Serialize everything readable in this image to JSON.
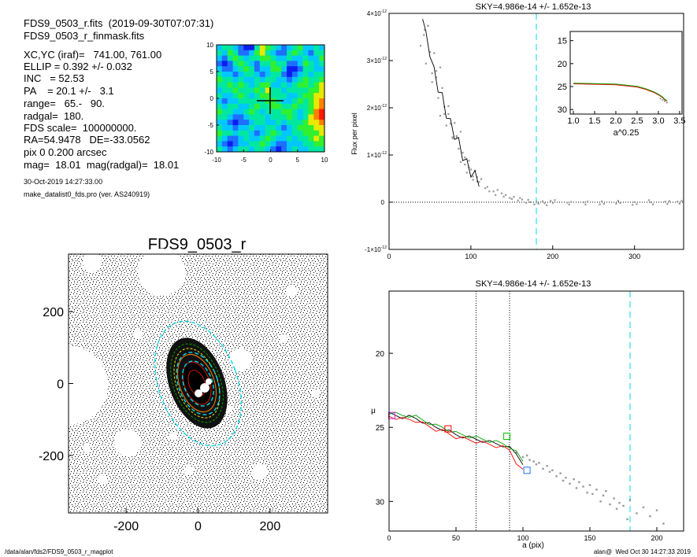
{
  "header": {
    "line1": "FDS9_0503_r.fits  (2019-09-30T07:07:31)",
    "line2": "FDS9_0503_r_finmask.fits",
    "params": [
      "XC,YC (iraf)=   741.00, 761.00",
      "ELLIP = 0.392 +/- 0.032",
      "INC   = 52.53",
      "PA    = 20.1 +/-   3.1",
      "range=   65.-   90.",
      "radgal=  180.",
      "FDS scale=  100000000.",
      "RA=54.9478   DE=-33.0562",
      "pix 0 0.200 arcsec",
      "mag=  18.01  mag(radgal)=  18.01"
    ],
    "date": "30-Oct-2019 14:27:33.00",
    "program": "make_datalist0_fds.pro (ver. AS240919)"
  },
  "footer": {
    "left": "/data/alan/fds2/FDS9_0503_r_magplot",
    "right": "alan@  Wed Oct 30 14:27:33 2019"
  },
  "colors": {
    "cyan": "#00d8e8",
    "model_black": "#000000",
    "model_red": "#ff0000",
    "model_green": "#00a000",
    "points": "#999999",
    "contour": [
      "#0a1ef0",
      "#1e6eff",
      "#00c8ff",
      "#00e8a0",
      "#30f030",
      "#e8e800",
      "#ff8000",
      "#ff1a00"
    ]
  },
  "chart_data": [
    {
      "id": "residual",
      "type": "heatmap",
      "title": "",
      "xlim": [
        -10,
        10
      ],
      "ylim": [
        -10,
        10
      ],
      "xticks": [
        "-10",
        "-5",
        "0",
        "5",
        "10"
      ],
      "yticks": [
        "10",
        "5",
        "0",
        "-5",
        "-10"
      ],
      "grid": [
        [
          2,
          3,
          3,
          2,
          1,
          0,
          0,
          3,
          5,
          4,
          3,
          2,
          1,
          2,
          3,
          4,
          2,
          2,
          3,
          2
        ],
        [
          3,
          2,
          4,
          3,
          1,
          1,
          2,
          4,
          5,
          3,
          2,
          1,
          1,
          3,
          4,
          3,
          2,
          1,
          3,
          3
        ],
        [
          2,
          1,
          3,
          4,
          3,
          2,
          3,
          3,
          4,
          4,
          3,
          2,
          2,
          3,
          2,
          2,
          3,
          2,
          2,
          4
        ],
        [
          1,
          0,
          1,
          3,
          4,
          3,
          2,
          1,
          3,
          3,
          4,
          3,
          3,
          1,
          1,
          2,
          4,
          3,
          2,
          3
        ],
        [
          2,
          1,
          1,
          2,
          3,
          4,
          3,
          1,
          2,
          2,
          4,
          4,
          2,
          0,
          0,
          1,
          3,
          3,
          2,
          2
        ],
        [
          3,
          2,
          2,
          1,
          2,
          3,
          3,
          2,
          1,
          2,
          3,
          3,
          1,
          0,
          1,
          2,
          3,
          2,
          3,
          3
        ],
        [
          4,
          3,
          3,
          2,
          3,
          2,
          2,
          3,
          2,
          3,
          3,
          2,
          2,
          1,
          2,
          3,
          4,
          3,
          3,
          4
        ],
        [
          3,
          3,
          4,
          3,
          4,
          3,
          2,
          3,
          4,
          4,
          2,
          2,
          3,
          2,
          3,
          4,
          4,
          3,
          4,
          5
        ],
        [
          2,
          3,
          3,
          4,
          3,
          3,
          3,
          4,
          3,
          5,
          3,
          3,
          2,
          3,
          3,
          3,
          3,
          4,
          4,
          5
        ],
        [
          3,
          2,
          2,
          3,
          4,
          3,
          2,
          3,
          4,
          4,
          3,
          3,
          3,
          2,
          2,
          3,
          4,
          4,
          5,
          5
        ],
        [
          2,
          1,
          2,
          2,
          3,
          3,
          3,
          3,
          3,
          4,
          4,
          3,
          2,
          2,
          3,
          4,
          3,
          4,
          5,
          6
        ],
        [
          3,
          2,
          3,
          3,
          2,
          2,
          3,
          4,
          3,
          3,
          4,
          4,
          3,
          3,
          4,
          3,
          3,
          4,
          5,
          6
        ],
        [
          4,
          3,
          3,
          2,
          2,
          3,
          4,
          3,
          2,
          3,
          3,
          3,
          4,
          4,
          3,
          2,
          3,
          4,
          6,
          7
        ],
        [
          3,
          3,
          2,
          1,
          1,
          2,
          3,
          3,
          3,
          2,
          3,
          3,
          3,
          4,
          3,
          2,
          3,
          5,
          6,
          7
        ],
        [
          2,
          2,
          1,
          0,
          1,
          1,
          2,
          3,
          3,
          2,
          2,
          3,
          2,
          3,
          3,
          3,
          4,
          5,
          5,
          6
        ],
        [
          3,
          2,
          2,
          1,
          2,
          2,
          3,
          2,
          2,
          3,
          3,
          2,
          1,
          2,
          3,
          4,
          4,
          4,
          5,
          5
        ],
        [
          4,
          3,
          3,
          2,
          3,
          3,
          2,
          1,
          2,
          3,
          4,
          3,
          2,
          2,
          3,
          3,
          4,
          4,
          4,
          5
        ],
        [
          3,
          2,
          1,
          1,
          2,
          3,
          2,
          2,
          3,
          4,
          3,
          2,
          2,
          3,
          2,
          3,
          3,
          4,
          5,
          4
        ],
        [
          2,
          1,
          0,
          1,
          2,
          2,
          3,
          3,
          4,
          3,
          2,
          1,
          1,
          2,
          2,
          2,
          3,
          3,
          4,
          4
        ],
        [
          3,
          2,
          1,
          2,
          3,
          3,
          2,
          3,
          3,
          2,
          1,
          0,
          1,
          2,
          3,
          2,
          2,
          3,
          3,
          3
        ]
      ]
    },
    {
      "id": "image",
      "type": "scatter",
      "title": "FDS9_0503_r",
      "xlim": [
        -360,
        360
      ],
      "ylim": [
        -360,
        360
      ],
      "xticks": [
        -200,
        0,
        200
      ],
      "yticks": [
        200,
        0,
        -200
      ],
      "ellipses": [
        {
          "a": 180,
          "ellip": 0.392,
          "pa": 20.1
        },
        {
          "a": 90,
          "ellip": 0.392,
          "pa": 20.1
        },
        {
          "a": 65,
          "ellip": 0.392,
          "pa": 20.1
        }
      ]
    },
    {
      "id": "flux",
      "type": "scatter",
      "title": "SKY=4.986e-14 +/- 1.652e-13",
      "xlabel": "",
      "ylabel": "Flux per pixel",
      "xlim": [
        0,
        360
      ],
      "ylim": [
        -1e-12,
        4e-12
      ],
      "xticks": [
        0,
        100,
        200,
        300
      ],
      "yticks": [
        {
          "v": 4e-12,
          "m": "4",
          "e": "-12"
        },
        {
          "v": 3e-12,
          "m": "3",
          "e": "-12"
        },
        {
          "v": 2e-12,
          "m": "2",
          "e": "-12"
        },
        {
          "v": 1e-12,
          "m": "1",
          "e": "-12"
        },
        {
          "v": 0,
          "m": "0",
          "e": ""
        },
        {
          "v": -1e-12,
          "m": "-1",
          "e": "-12"
        }
      ],
      "radgal": 180,
      "profile": {
        "x": [
          41,
          45,
          50,
          55,
          60,
          65,
          70,
          75,
          80,
          85,
          90,
          95,
          100,
          105,
          110,
          120,
          130,
          140,
          150,
          160,
          170,
          180,
          190,
          200,
          220,
          240,
          260,
          280,
          300,
          320,
          340,
          355
        ],
        "y": [
          4e-12,
          3.5e-12,
          3.2e-12,
          2.75e-12,
          2.45e-12,
          2.2e-12,
          1.9e-12,
          1.65e-12,
          1.45e-12,
          1.25e-12,
          1e-12,
          8e-13,
          6.5e-13,
          5.5e-13,
          4.5e-13,
          3e-13,
          2e-13,
          1.5e-13,
          1e-13,
          5e-14,
          2e-14,
          0.0,
          -2e-14,
          0.0,
          -2e-14,
          0.0,
          -3e-14,
          0.0,
          -1e-14,
          0.0,
          -2e-14,
          0.0
        ]
      },
      "inset": {
        "xlabel": "a^0.25",
        "xlim": [
          1.0,
          3.5
        ],
        "ylim": [
          31,
          13
        ],
        "xticks": [
          "1.0",
          "1.5",
          "2.0",
          "2.5",
          "3.0",
          "3.5"
        ],
        "yticks": [
          "15",
          "20",
          "25",
          "30"
        ],
        "curve": {
          "x": [
            1.0,
            1.5,
            2.0,
            2.5,
            2.7,
            2.9,
            3.0,
            3.1,
            3.15,
            3.2
          ],
          "y": [
            24.4,
            24.5,
            24.6,
            25.1,
            25.6,
            26.3,
            26.8,
            27.4,
            27.9,
            28.2
          ]
        }
      }
    },
    {
      "id": "mu",
      "type": "line",
      "title": "SKY=4.986e-14 +/- 1.652e-13",
      "xlabel": "a (pix)",
      "ylabel": "μ",
      "xlim": [
        0,
        220
      ],
      "ylim": [
        32,
        15.8
      ],
      "xticks": [
        0,
        50,
        100,
        150,
        200
      ],
      "yticks": [
        20,
        25,
        30
      ],
      "range_lines": [
        65,
        90
      ],
      "radgal": 180,
      "model": {
        "x": [
          0,
          5,
          10,
          15,
          20,
          25,
          30,
          35,
          40,
          45,
          50,
          55,
          60,
          65,
          70,
          75,
          80,
          85,
          90,
          95,
          100
        ],
        "y": [
          24.1,
          24.2,
          24.3,
          24.3,
          24.4,
          24.6,
          24.8,
          25.0,
          25.1,
          25.3,
          25.5,
          25.6,
          25.7,
          25.8,
          25.9,
          26.0,
          26.1,
          26.2,
          26.4,
          26.8,
          27.4
        ]
      },
      "markers": [
        {
          "x": 2,
          "y": 24.2,
          "color": "#e020e0"
        },
        {
          "x": 44,
          "y": 25.1,
          "color": "#ff0000"
        },
        {
          "x": 88,
          "y": 25.6,
          "color": "#00c000"
        },
        {
          "x": 103,
          "y": 27.9,
          "color": "#1e6eff"
        }
      ],
      "points": {
        "x": [
          95,
          100,
          103,
          105,
          108,
          110,
          112,
          115,
          118,
          120,
          122,
          125,
          128,
          130,
          132,
          135,
          138,
          140,
          142,
          145,
          148,
          150,
          152,
          155,
          158,
          160,
          162,
          165,
          168,
          170,
          172,
          175,
          178,
          180,
          185,
          190,
          195,
          200,
          205
        ],
        "y": [
          26.7,
          27.0,
          26.9,
          27.2,
          27.3,
          27.5,
          27.4,
          27.8,
          27.6,
          28.0,
          27.9,
          28.3,
          28.1,
          28.6,
          28.4,
          28.8,
          28.5,
          29.1,
          28.7,
          29.0,
          29.4,
          28.9,
          29.5,
          29.2,
          30.0,
          29.6,
          29.3,
          30.2,
          29.8,
          30.5,
          30.1,
          30.3,
          31.2,
          29.9,
          30.8,
          30.4,
          31.0,
          30.6,
          31.5
        ]
      }
    }
  ]
}
